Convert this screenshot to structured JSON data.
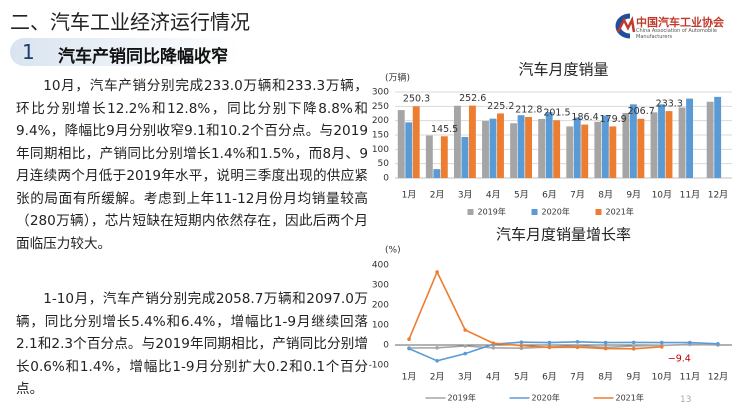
{
  "header": {
    "title": "二、汽车工业经济运行情况",
    "logo_name": "中国汽车工业协会",
    "logo_en": "China Association of Automobile Manufacturers"
  },
  "section": {
    "number": "1",
    "title": "汽车产销同比降幅收窄"
  },
  "paragraphs": [
    "10月，汽车产销分别完成233.0万辆和233.3万辆，环比分别增长12.2%和12.8%，同比分别下降8.8%和9.4%，降幅比9月分别收窄9.1和10.2个百分点。与2019年同期相比，产销同比分别增长1.4%和1.5%，而8月、9月连续两个月低于2019年水平，说明三季度出现的供应紧张的局面有所缓解。考虑到上年11-12月份月均销量较高（280万辆），芯片短缺在短期内依然存在，因此后两个月面临压力较大。",
    "1-10月，汽车产销分别完成2058.7万辆和2097.0万辆，同比分别增长5.4%和6.4%，增幅比1-9月继续回落2.1和2.3个百分点。与2019年同期相比，产销同比分别增长0.6%和1.4%，增幅比1-9月分别扩大0.2和0.1个百分点。"
  ],
  "page_number": "13",
  "chart_data": [
    {
      "type": "bar",
      "title": "汽车月度销量",
      "y_unit": "(万辆)",
      "categories": [
        "1月",
        "2月",
        "3月",
        "4月",
        "5月",
        "6月",
        "7月",
        "8月",
        "9月",
        "10月",
        "11月",
        "12月"
      ],
      "series": [
        {
          "name": "2019年",
          "color": "#a5a5a5",
          "values": [
            237,
            148,
            252,
            199,
            191,
            206,
            180,
            196,
            227,
            229,
            246,
            266
          ]
        },
        {
          "name": "2020年",
          "color": "#5b9bd5",
          "values": [
            194,
            31,
            143,
            207,
            219,
            230,
            211,
            218,
            257,
            257,
            277,
            283
          ]
        },
        {
          "name": "2021年",
          "color": "#ed7d31",
          "show_labels": true,
          "values": [
            250.3,
            145.5,
            252.6,
            225.2,
            212.8,
            201.5,
            186.4,
            179.9,
            206.7,
            233.3,
            null,
            null
          ]
        }
      ],
      "ylim": [
        0,
        300
      ],
      "yticks": [
        0,
        50,
        100,
        150,
        200,
        250,
        300
      ],
      "grid": true
    },
    {
      "type": "line",
      "title": "汽车月度销量增长率",
      "y_unit": "(%)",
      "categories": [
        "1月",
        "2月",
        "3月",
        "4月",
        "5月",
        "6月",
        "7月",
        "8月",
        "9月",
        "10月",
        "11月",
        "12月"
      ],
      "series": [
        {
          "name": "2019年",
          "color": "#a5a5a5",
          "values": [
            -15,
            -14,
            -5,
            -14,
            -16,
            -10,
            -4,
            -12,
            -5,
            -2,
            3,
            0
          ]
        },
        {
          "name": "2020年",
          "color": "#5b9bd5",
          "values": [
            -18,
            -79,
            -43,
            4,
            14,
            12,
            16,
            12,
            13,
            12,
            12,
            6
          ]
        },
        {
          "name": "2021年",
          "color": "#ed7d31",
          "label_color": "#c00000",
          "values": [
            29,
            365,
            75,
            9,
            -3,
            -12,
            -11,
            -18,
            -19,
            -9.4,
            null,
            null
          ],
          "value_labels": [
            null,
            null,
            null,
            null,
            null,
            null,
            null,
            null,
            null,
            "−9.4",
            null,
            null
          ]
        }
      ],
      "ylim": [
        -100,
        400
      ],
      "yticks": [
        -100,
        0,
        100,
        200,
        300,
        400
      ],
      "grid": false
    }
  ]
}
